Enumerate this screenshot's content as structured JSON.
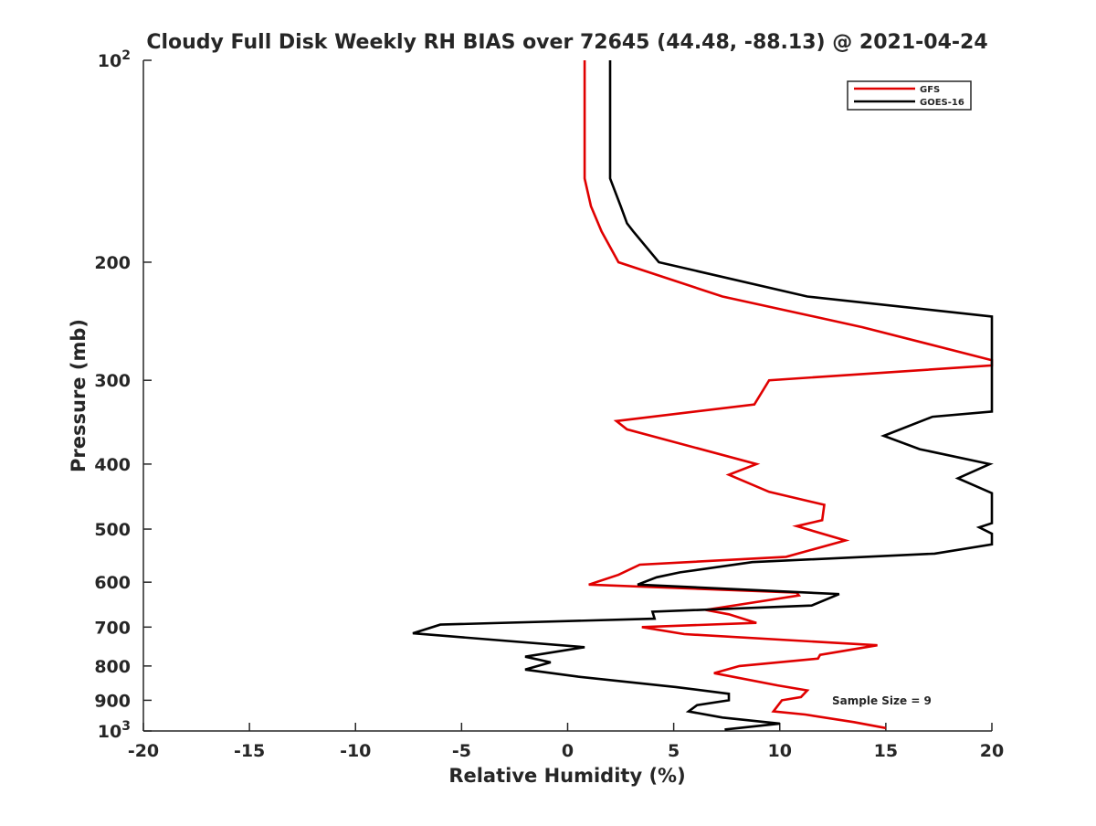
{
  "chart_data": {
    "type": "line",
    "title": "Cloudy Full Disk Weekly RH BIAS over 72645 (44.48, -88.13) @ 2021-04-24",
    "xlabel": "Relative Humidity (%)",
    "ylabel": "Pressure (mb)",
    "xlim": [
      -20,
      20
    ],
    "ylim": [
      100,
      1000
    ],
    "y_scale": "log",
    "y_reversed": true,
    "grid": false,
    "legend_position": "top-right",
    "x_ticks": [
      {
        "value": -20,
        "label": "-20"
      },
      {
        "value": -15,
        "label": "-15"
      },
      {
        "value": -10,
        "label": "-10"
      },
      {
        "value": -5,
        "label": "-5"
      },
      {
        "value": 0,
        "label": "0"
      },
      {
        "value": 5,
        "label": "5"
      },
      {
        "value": 10,
        "label": "10"
      },
      {
        "value": 15,
        "label": "15"
      },
      {
        "value": 20,
        "label": "20"
      }
    ],
    "y_ticks": [
      {
        "value": 100,
        "base": "10",
        "exp": "2"
      },
      {
        "value": 200,
        "label": "200"
      },
      {
        "value": 300,
        "label": "300"
      },
      {
        "value": 400,
        "label": "400"
      },
      {
        "value": 500,
        "label": "500"
      },
      {
        "value": 600,
        "label": "600"
      },
      {
        "value": 700,
        "label": "700"
      },
      {
        "value": 800,
        "label": "800"
      },
      {
        "value": 900,
        "label": "900"
      },
      {
        "value": 1000,
        "base": "10",
        "exp": "3"
      }
    ],
    "annotation": "Sample Size = 9",
    "series": [
      {
        "name": "GFS",
        "color": "#e00000",
        "points": [
          [
            0.8,
            100
          ],
          [
            0.8,
            150
          ],
          [
            1.1,
            165
          ],
          [
            1.6,
            180
          ],
          [
            2.4,
            200
          ],
          [
            7.3,
            225
          ],
          [
            13.9,
            250
          ],
          [
            20,
            280
          ],
          [
            20,
            285
          ],
          [
            9.5,
            300
          ],
          [
            8.8,
            326
          ],
          [
            2.3,
            345
          ],
          [
            2.8,
            355
          ],
          [
            8.9,
            400
          ],
          [
            7.6,
            415
          ],
          [
            9.5,
            440
          ],
          [
            12.1,
            460
          ],
          [
            12.0,
            485
          ],
          [
            10.8,
            495
          ],
          [
            13.1,
            520
          ],
          [
            10.3,
            550
          ],
          [
            3.4,
            565
          ],
          [
            2.4,
            585
          ],
          [
            1.0,
            605
          ],
          [
            10.8,
            622
          ],
          [
            10.9,
            628
          ],
          [
            6.5,
            660
          ],
          [
            7.6,
            670
          ],
          [
            8.9,
            690
          ],
          [
            3.5,
            700
          ],
          [
            5.5,
            717
          ],
          [
            14.6,
            745
          ],
          [
            11.9,
            770
          ],
          [
            11.8,
            780
          ],
          [
            8.1,
            800
          ],
          [
            6.9,
            820
          ],
          [
            9.9,
            855
          ],
          [
            11.3,
            870
          ],
          [
            11.0,
            890
          ],
          [
            10.1,
            900
          ],
          [
            9.7,
            935
          ],
          [
            11.2,
            945
          ],
          [
            13.5,
            970
          ],
          [
            15.0,
            990
          ]
        ]
      },
      {
        "name": "GOES-16",
        "color": "#000000",
        "points": [
          [
            2.0,
            100
          ],
          [
            2.0,
            150
          ],
          [
            2.5,
            165
          ],
          [
            2.8,
            175
          ],
          [
            3.1,
            180
          ],
          [
            4.3,
            200
          ],
          [
            11.3,
            225
          ],
          [
            20,
            241
          ],
          [
            20,
            334
          ],
          [
            17.2,
            340
          ],
          [
            14.9,
            363
          ],
          [
            16.6,
            380
          ],
          [
            19.9,
            400
          ],
          [
            18.4,
            420
          ],
          [
            20,
            442
          ],
          [
            20,
            490
          ],
          [
            19.4,
            497
          ],
          [
            20,
            508
          ],
          [
            20,
            527
          ],
          [
            17.3,
            544
          ],
          [
            8.7,
            560
          ],
          [
            5.3,
            580
          ],
          [
            4.2,
            590
          ],
          [
            3.3,
            605
          ],
          [
            12.8,
            625
          ],
          [
            11.5,
            650
          ],
          [
            4.0,
            664
          ],
          [
            4.1,
            680
          ],
          [
            -6.0,
            694
          ],
          [
            -7.3,
            715
          ],
          [
            0.8,
            750
          ],
          [
            -2.0,
            775
          ],
          [
            -0.8,
            790
          ],
          [
            -2.0,
            810
          ],
          [
            0.5,
            830
          ],
          [
            5.1,
            860
          ],
          [
            7.6,
            880
          ],
          [
            7.6,
            900
          ],
          [
            6.1,
            915
          ],
          [
            5.7,
            935
          ],
          [
            7.3,
            955
          ],
          [
            10.0,
            975
          ],
          [
            7.4,
            995
          ]
        ]
      }
    ]
  }
}
